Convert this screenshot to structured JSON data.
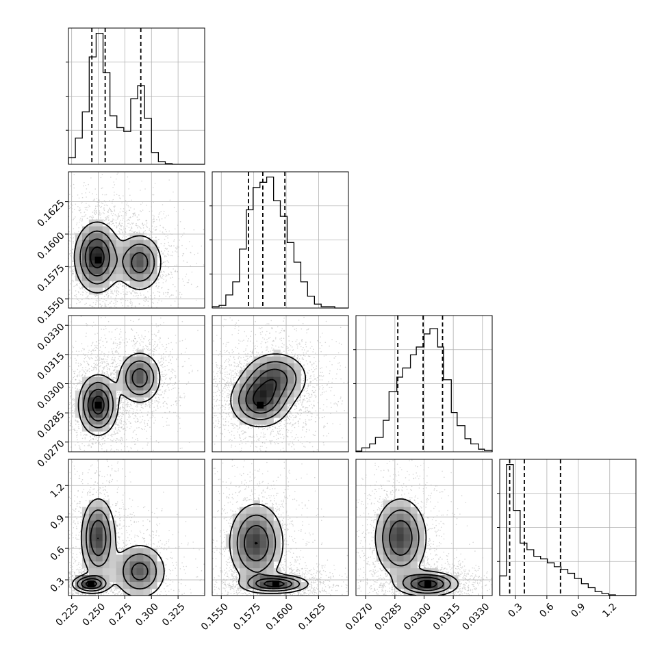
{
  "chart_data": {
    "type": "corner",
    "description": "Corner plot of 4 parameters: 1D marginal histograms on diagonal with dashed 16/50/84% quantiles; 2D scatter + density + contours below diagonal.",
    "parameters": [
      {
        "ticks": [
          0.225,
          0.25,
          0.275,
          0.3,
          0.325
        ],
        "tick_labels": [
          "0.225",
          "0.250",
          "0.275",
          "0.300",
          "0.325"
        ],
        "range": [
          0.222,
          0.35
        ],
        "quantiles": [
          0.244,
          0.2565,
          0.29
        ],
        "histogram": {
          "bin_edges": [
            0.222,
            0.2285,
            0.235,
            0.2415,
            0.248,
            0.2545,
            0.261,
            0.2675,
            0.274,
            0.2805,
            0.287,
            0.2935,
            0.3,
            0.3065,
            0.313,
            0.3195,
            0.326,
            0.3325,
            0.339,
            0.3455,
            0.35
          ],
          "counts": [
            5,
            20,
            40,
            82,
            100,
            70,
            37,
            28,
            25,
            50,
            60,
            35,
            9,
            2,
            0.5,
            0,
            0,
            0,
            0,
            0
          ]
        },
        "hist_max": 100
      },
      {
        "ticks": [
          0.155,
          0.1575,
          0.16,
          0.1625
        ],
        "tick_labels": [
          "0.1550",
          "0.1575",
          "0.1600",
          "0.1625"
        ],
        "range": [
          0.1543,
          0.1648
        ],
        "quantiles": [
          0.1571,
          0.1582,
          0.1599
        ],
        "histogram": {
          "bin_edges": [
            0.1543,
            0.15483,
            0.15535,
            0.15588,
            0.1564,
            0.15693,
            0.15745,
            0.15798,
            0.1585,
            0.15903,
            0.15955,
            0.16008,
            0.1606,
            0.16113,
            0.16165,
            0.16218,
            0.1627,
            0.16323,
            0.16375,
            0.16428,
            0.1648
          ],
          "counts": [
            1,
            2,
            10,
            20,
            45,
            75,
            92,
            96,
            100,
            82,
            70,
            50,
            35,
            20,
            9,
            3,
            1,
            1,
            0,
            0
          ]
        },
        "hist_max": 100
      },
      {
        "ticks": [
          0.027,
          0.0285,
          0.03,
          0.0315,
          0.033
        ],
        "tick_labels": [
          "0.0270",
          "0.0285",
          "0.0300",
          "0.0315",
          "0.0330"
        ],
        "range": [
          0.0265,
          0.0335
        ],
        "quantiles": [
          0.02865,
          0.02995,
          0.03095
        ],
        "histogram": {
          "bin_edges": [
            0.0265,
            0.0268,
            0.0272,
            0.0275,
            0.0279,
            0.0282,
            0.0286,
            0.0289,
            0.0293,
            0.0296,
            0.03,
            0.0303,
            0.0307,
            0.031,
            0.0314,
            0.0317,
            0.0321,
            0.0324,
            0.0328,
            0.0331,
            0.0335
          ],
          "counts": [
            0.5,
            3,
            6,
            11,
            24,
            46,
            57,
            64,
            74,
            80,
            90,
            94,
            80,
            55,
            30,
            20,
            10,
            6,
            2,
            1
          ]
        },
        "hist_max": 100
      },
      {
        "ticks": [
          0.3,
          0.6,
          0.9,
          1.2
        ],
        "tick_labels": [
          "0.3",
          "0.6",
          "0.9",
          "1.2"
        ],
        "range": [
          0.15,
          1.45
        ],
        "quantiles": [
          0.245,
          0.385,
          0.73
        ],
        "histogram": {
          "bin_edges": [
            0.15,
            0.215,
            0.28,
            0.345,
            0.41,
            0.475,
            0.54,
            0.605,
            0.67,
            0.735,
            0.8,
            0.865,
            0.93,
            0.995,
            1.06,
            1.125,
            1.19,
            1.255,
            1.32,
            1.385,
            1.45
          ],
          "counts": [
            15,
            100,
            65,
            40,
            35,
            30,
            28,
            25,
            22,
            20,
            17,
            13,
            9,
            6,
            3,
            1.5,
            0.5,
            0,
            0,
            0
          ]
        },
        "hist_max": 100
      }
    ],
    "pairs": [
      {
        "x_param": 0,
        "y_param": 1,
        "modes": [
          {
            "x": 0.249,
            "y": 0.1582,
            "sx": 0.011,
            "sy": 0.0014,
            "weight": 1.0
          },
          {
            "x": 0.289,
            "y": 0.1578,
            "sx": 0.011,
            "sy": 0.00115,
            "weight": 0.75
          }
        ],
        "densest": {
          "x": 0.25,
          "y": 0.158
        }
      },
      {
        "x_param": 0,
        "y_param": 2,
        "modes": [
          {
            "x": 0.25,
            "y": 0.0289,
            "sx": 0.0095,
            "sy": 0.0008,
            "weight": 1.0
          },
          {
            "x": 0.289,
            "y": 0.0303,
            "sx": 0.0105,
            "sy": 0.0007,
            "weight": 0.75
          }
        ],
        "densest": {
          "x": 0.25,
          "y": 0.0289
        }
      },
      {
        "x_param": 1,
        "y_param": 2,
        "modes": [
          {
            "x": 0.158,
            "y": 0.0291,
            "sx": 0.0012,
            "sy": 0.0007,
            "weight": 1.0
          },
          {
            "x": 0.1592,
            "y": 0.0303,
            "sx": 0.0013,
            "sy": 0.0007,
            "weight": 0.8
          }
        ],
        "densest": {
          "x": 0.158,
          "y": 0.0289
        }
      },
      {
        "x_param": 0,
        "y_param": 3,
        "modes": [
          {
            "x": 0.243,
            "y": 0.26,
            "sx": 0.009,
            "sy": 0.045,
            "weight": 1.0
          },
          {
            "x": 0.25,
            "y": 0.7,
            "sx": 0.0085,
            "sy": 0.2,
            "weight": 0.9
          },
          {
            "x": 0.289,
            "y": 0.38,
            "sx": 0.013,
            "sy": 0.14,
            "weight": 0.75
          }
        ],
        "densest": {
          "x": 0.243,
          "y": 0.26
        }
      },
      {
        "x_param": 1,
        "y_param": 3,
        "modes": [
          {
            "x": 0.1592,
            "y": 0.26,
            "sx": 0.0013,
            "sy": 0.045,
            "weight": 1.0
          },
          {
            "x": 0.1577,
            "y": 0.65,
            "sx": 0.0011,
            "sy": 0.2,
            "weight": 0.9
          }
        ],
        "densest": {
          "x": 0.1592,
          "y": 0.26
        }
      },
      {
        "x_param": 2,
        "y_param": 3,
        "modes": [
          {
            "x": 0.0302,
            "y": 0.26,
            "sx": 0.0008,
            "sy": 0.06,
            "weight": 1.0
          },
          {
            "x": 0.0288,
            "y": 0.7,
            "sx": 0.0007,
            "sy": 0.2,
            "weight": 0.85
          }
        ],
        "densest": {
          "x": 0.0302,
          "y": 0.26
        }
      }
    ],
    "contour_levels": [
      0.15,
      0.35,
      0.6,
      0.85
    ],
    "colors": {
      "points": "#b4b4b4",
      "line": "#000000",
      "grid": "#b0b0b0"
    }
  }
}
